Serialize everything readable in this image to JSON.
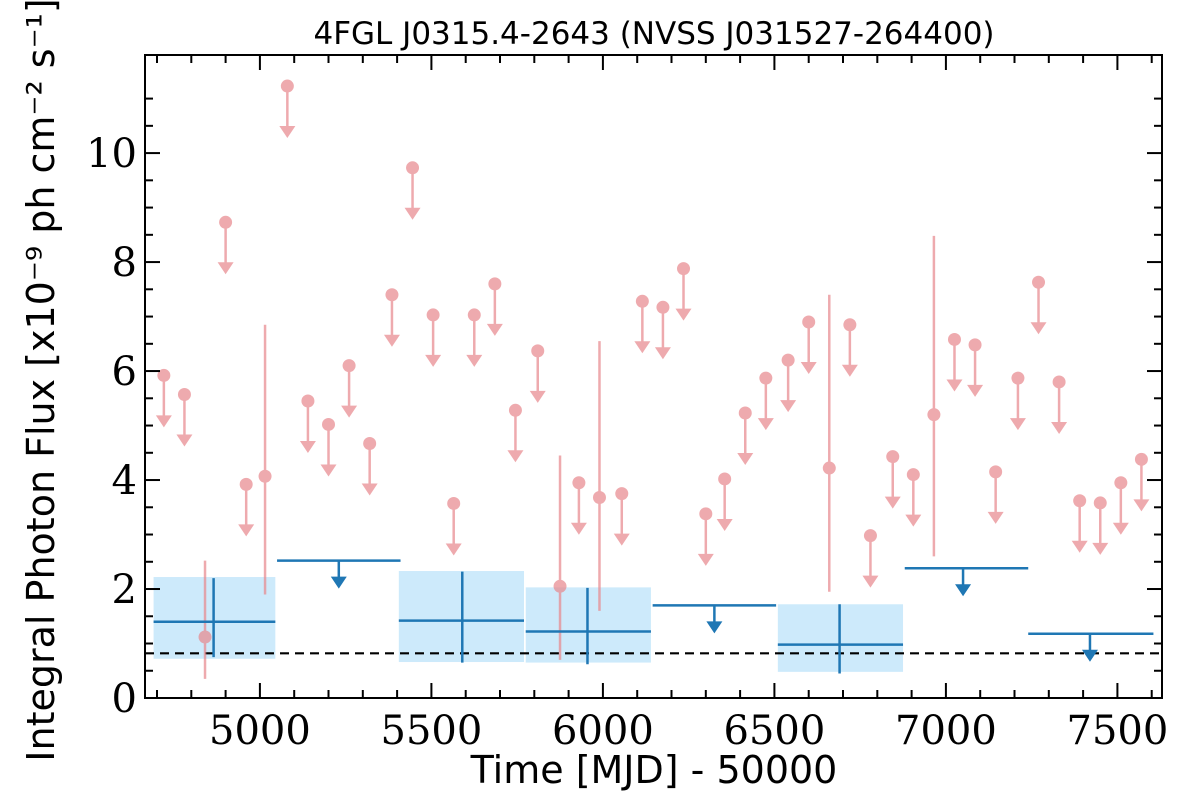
{
  "chart_data": {
    "type": "scatter",
    "title": "4FGL J0315.4-2643 (NVSS J031527-264400)",
    "xlabel": "Time [MJD] - 50000",
    "ylabel": "Integral Photon Flux [x10⁻⁹ ph cm⁻² s⁻¹]",
    "xlim": [
      4665,
      7630
    ],
    "ylim": [
      0,
      11.8
    ],
    "xticks": [
      5000,
      5500,
      6000,
      6500,
      7000,
      7500
    ],
    "yticks": [
      0,
      2,
      4,
      6,
      8,
      10
    ],
    "grid": false,
    "reference_line": {
      "y": 0.82,
      "style": "dashed",
      "color": "#000000"
    },
    "colors": {
      "short_bins": "#e88a8f",
      "long_bins": "#1f77b4",
      "long_band": "#cdeafb"
    },
    "series": [
      {
        "bin": "short",
        "detections": [
          {
            "x": 4840,
            "y": 1.12,
            "ylo": 0.35,
            "yhi": 2.52
          },
          {
            "x": 5015,
            "y": 4.07,
            "ylo": 1.9,
            "yhi": 6.85
          },
          {
            "x": 5875,
            "y": 2.05,
            "ylo": 0.7,
            "yhi": 4.45
          },
          {
            "x": 5990,
            "y": 3.68,
            "ylo": 1.6,
            "yhi": 6.55
          },
          {
            "x": 6660,
            "y": 4.22,
            "ylo": 1.95,
            "yhi": 7.4
          },
          {
            "x": 6965,
            "y": 5.2,
            "ylo": 2.6,
            "yhi": 8.48
          }
        ],
        "upper_limits": [
          {
            "x": 4720,
            "y": 5.92
          },
          {
            "x": 4780,
            "y": 5.57
          },
          {
            "x": 4900,
            "y": 8.73
          },
          {
            "x": 4960,
            "y": 3.92
          },
          {
            "x": 5080,
            "y": 11.23
          },
          {
            "x": 5140,
            "y": 5.45
          },
          {
            "x": 5200,
            "y": 5.02
          },
          {
            "x": 5260,
            "y": 6.1
          },
          {
            "x": 5320,
            "y": 4.67
          },
          {
            "x": 5385,
            "y": 7.4
          },
          {
            "x": 5445,
            "y": 9.73
          },
          {
            "x": 5505,
            "y": 7.03
          },
          {
            "x": 5565,
            "y": 3.57
          },
          {
            "x": 5625,
            "y": 7.03
          },
          {
            "x": 5685,
            "y": 7.6
          },
          {
            "x": 5745,
            "y": 5.28
          },
          {
            "x": 5810,
            "y": 6.37
          },
          {
            "x": 5930,
            "y": 3.95
          },
          {
            "x": 6055,
            "y": 3.75
          },
          {
            "x": 6115,
            "y": 7.28
          },
          {
            "x": 6175,
            "y": 7.17
          },
          {
            "x": 6235,
            "y": 7.88
          },
          {
            "x": 6300,
            "y": 3.38
          },
          {
            "x": 6355,
            "y": 4.02
          },
          {
            "x": 6415,
            "y": 5.23
          },
          {
            "x": 6475,
            "y": 5.87
          },
          {
            "x": 6540,
            "y": 6.2
          },
          {
            "x": 6600,
            "y": 6.9
          },
          {
            "x": 6720,
            "y": 6.85
          },
          {
            "x": 6780,
            "y": 2.98
          },
          {
            "x": 6845,
            "y": 4.43
          },
          {
            "x": 6905,
            "y": 4.1
          },
          {
            "x": 7025,
            "y": 6.58
          },
          {
            "x": 7085,
            "y": 6.48
          },
          {
            "x": 7145,
            "y": 4.15
          },
          {
            "x": 7210,
            "y": 5.87
          },
          {
            "x": 7270,
            "y": 7.63
          },
          {
            "x": 7330,
            "y": 5.8
          },
          {
            "x": 7390,
            "y": 3.62
          },
          {
            "x": 7450,
            "y": 3.58
          },
          {
            "x": 7510,
            "y": 3.95
          },
          {
            "x": 7570,
            "y": 4.38
          }
        ]
      },
      {
        "bin": "long",
        "detections": [
          {
            "x": 4865,
            "xlo": 4690,
            "xhi": 5045,
            "y": 1.4,
            "ylo": 0.75,
            "yhi": 2.2,
            "band": [
              0.72,
              2.22
            ]
          },
          {
            "x": 5590,
            "xlo": 5405,
            "xhi": 5770,
            "y": 1.42,
            "ylo": 0.65,
            "yhi": 2.32,
            "band": [
              0.66,
              2.33
            ]
          },
          {
            "x": 5955,
            "xlo": 5775,
            "xhi": 6140,
            "y": 1.22,
            "ylo": 0.62,
            "yhi": 2.02,
            "band": [
              0.65,
              2.03
            ]
          },
          {
            "x": 6690,
            "xlo": 6510,
            "xhi": 6875,
            "y": 0.98,
            "ylo": 0.45,
            "yhi": 1.72,
            "band": [
              0.48,
              1.72
            ]
          }
        ],
        "upper_limits": [
          {
            "x": 5230,
            "xlo": 5050,
            "xhi": 5410,
            "y": 2.52
          },
          {
            "x": 6325,
            "xlo": 6145,
            "xhi": 6505,
            "y": 1.7
          },
          {
            "x": 7050,
            "xlo": 6880,
            "xhi": 7240,
            "y": 2.38
          },
          {
            "x": 7420,
            "xlo": 7240,
            "xhi": 7605,
            "y": 1.18
          }
        ]
      }
    ]
  }
}
